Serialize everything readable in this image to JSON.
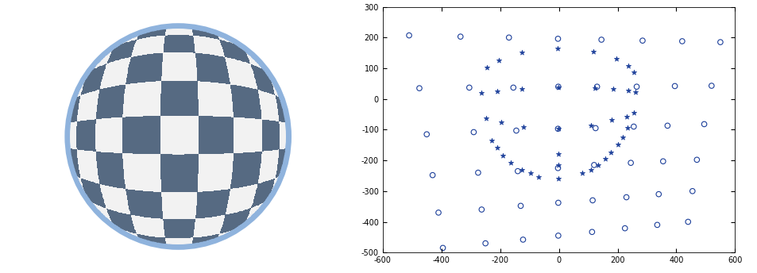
{
  "chart_data": {
    "type": "scatter",
    "xlim": [
      -600,
      600
    ],
    "ylim": [
      -500,
      300
    ],
    "xticks": [
      -600,
      -400,
      -200,
      0,
      200,
      400,
      600
    ],
    "yticks": [
      -500,
      -400,
      -300,
      -200,
      -100,
      0,
      100,
      200,
      300
    ],
    "grid": false,
    "series": [
      {
        "color": "#1c3f9a",
        "marker": "circle",
        "x": [
          -510,
          -335,
          -170,
          -3,
          145,
          285,
          420,
          550,
          -475,
          -305,
          -155,
          -2,
          130,
          265,
          395,
          520,
          -450,
          -290,
          -145,
          -3,
          125,
          255,
          370,
          495,
          -430,
          -275,
          -140,
          -3,
          120,
          245,
          355,
          470,
          -410,
          -263,
          -130,
          -2,
          115,
          230,
          340,
          455,
          -395,
          -250,
          -122,
          -2,
          113,
          225,
          335,
          440
        ],
        "y": [
          207,
          203,
          200,
          196,
          193,
          190,
          188,
          185,
          35,
          37,
          37,
          40,
          40,
          40,
          42,
          43,
          -115,
          -108,
          -103,
          -97,
          -95,
          -90,
          -87,
          -82,
          -248,
          -240,
          -235,
          -225,
          -215,
          -208,
          -203,
          -198,
          -370,
          -360,
          -348,
          -338,
          -330,
          -320,
          -310,
          -300,
          -485,
          -470,
          -458,
          -445,
          -433,
          -421,
          -410,
          -400
        ]
      },
      {
        "color": "#1c3f9a",
        "marker": "star",
        "x": [
          -245,
          -205,
          -127,
          -3,
          118,
          197,
          237,
          255,
          -265,
          -210,
          -127,
          -2,
          122,
          185,
          237,
          260,
          -248,
          -195,
          -120,
          -2,
          110,
          180,
          230,
          255,
          -230,
          -210,
          -190,
          -165,
          -125,
          -95,
          -70,
          -2,
          -2,
          -2,
          235,
          218,
          200,
          178,
          158,
          135,
          110,
          80
        ],
        "y": [
          103,
          127,
          152,
          165,
          153,
          130,
          107,
          88,
          20,
          25,
          33,
          38,
          35,
          32,
          28,
          22,
          -63,
          -77,
          -90,
          -97,
          -85,
          -68,
          -57,
          -45,
          -135,
          -158,
          -185,
          -208,
          -230,
          -240,
          -255,
          -180,
          -215,
          -258,
          -95,
          -125,
          -148,
          -175,
          -195,
          -215,
          -230,
          -240
        ]
      }
    ]
  }
}
